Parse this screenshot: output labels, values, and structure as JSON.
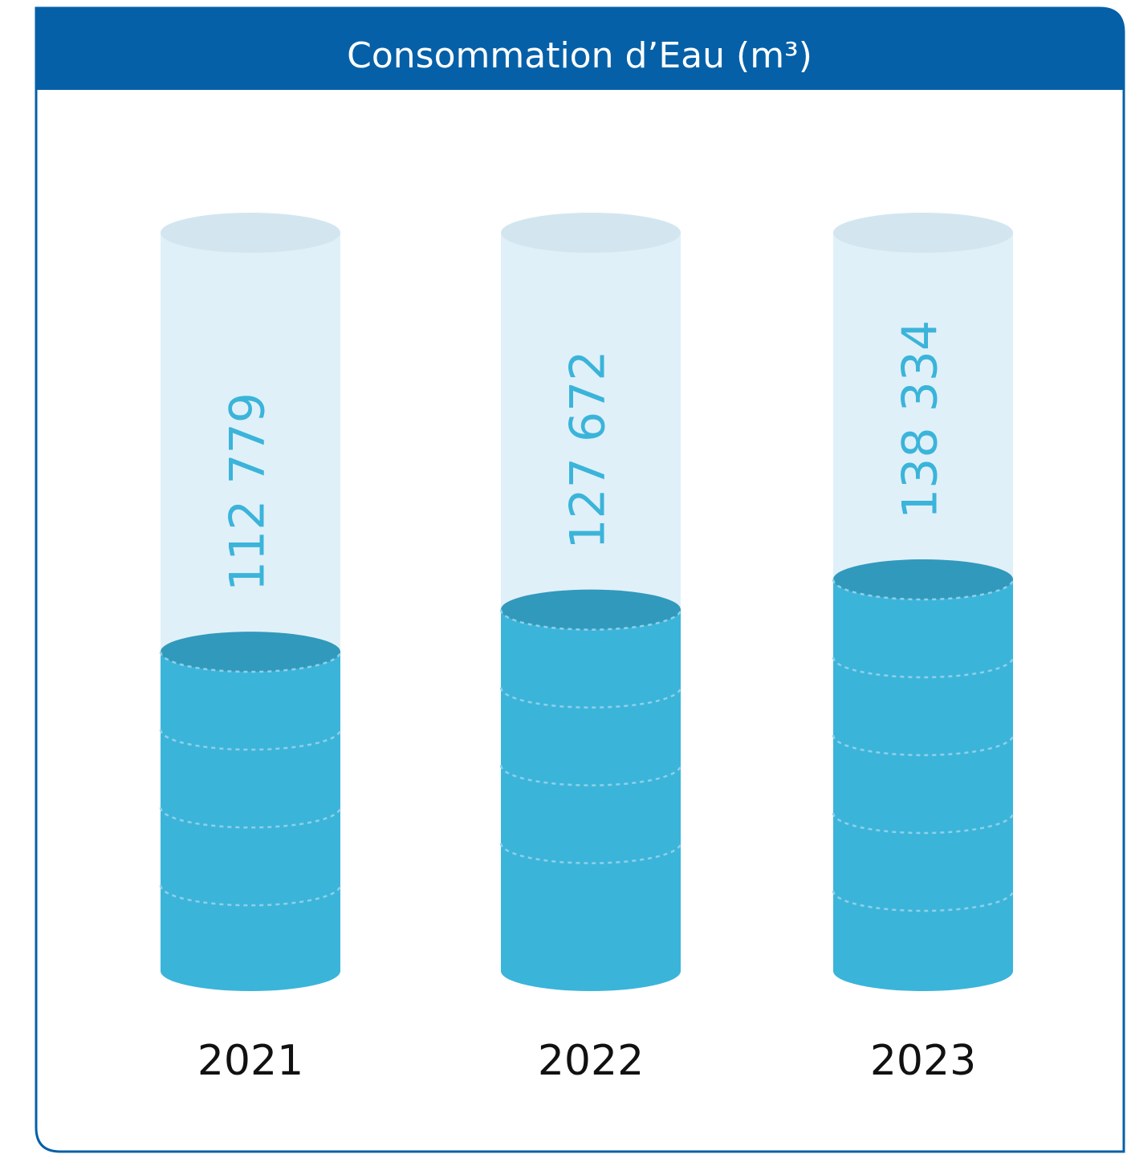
{
  "chart_data": {
    "type": "cylinder",
    "title": "Consommation d’Eau (m³)",
    "categories": [
      "2021",
      "2022",
      "2023"
    ],
    "values": [
      112779,
      127672,
      138334
    ],
    "value_labels": [
      "112 779",
      "127 672",
      "138 334"
    ],
    "color": "#3bb4da"
  }
}
